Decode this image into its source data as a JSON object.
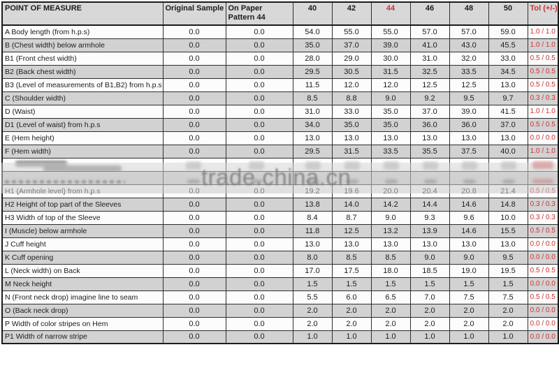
{
  "watermark": "trade.china.cn",
  "colors": {
    "accent_red": "#cc3333",
    "row_shade_gray": "#d2d2d2",
    "header_bg": "#d8d8d8",
    "watermark_gray": "#7a7a7a"
  },
  "table": {
    "columns": [
      "POINT OF MEASURE",
      "Original Sample",
      "On Paper Pattern 44",
      "40",
      "42",
      "44",
      "46",
      "48",
      "50",
      "Tol (+/-)"
    ],
    "red_columns": [
      5,
      9
    ],
    "rows": [
      {
        "label": "A Body length (from h.p.s)",
        "original_sample": "0.0",
        "on_paper_pattern": "0.0",
        "sizes": [
          "54.0",
          "55.0",
          "55.0",
          "57.0",
          "57.0",
          "59.0"
        ],
        "tol": "1.0 / 1.0"
      },
      {
        "label": "B (Chest width) below armhole",
        "original_sample": "0.0",
        "on_paper_pattern": "0.0",
        "sizes": [
          "35.0",
          "37.0",
          "39.0",
          "41.0",
          "43.0",
          "45.5"
        ],
        "tol": "1.0 / 1.0"
      },
      {
        "label": "B1 (Front chest width)",
        "original_sample": "0.0",
        "on_paper_pattern": "0.0",
        "sizes": [
          "28.0",
          "29.0",
          "30.0",
          "31.0",
          "32.0",
          "33.0"
        ],
        "tol": "0.5 / 0.5"
      },
      {
        "label": "B2 (Back chest width)",
        "original_sample": "0.0",
        "on_paper_pattern": "0.0",
        "sizes": [
          "29.5",
          "30.5",
          "31.5",
          "32.5",
          "33.5",
          "34.5"
        ],
        "tol": "0.5 / 0.5"
      },
      {
        "label": "B3 (Level of measurements of B1,B2) from h.p.s",
        "original_sample": "0.0",
        "on_paper_pattern": "0.0",
        "sizes": [
          "11.5",
          "12.0",
          "12.0",
          "12.5",
          "12.5",
          "13.0"
        ],
        "tol": "0.5 / 0.5"
      },
      {
        "label": "C (Shoulder width)",
        "original_sample": "0.0",
        "on_paper_pattern": "0.0",
        "sizes": [
          "8.5",
          "8.8",
          "9.0",
          "9.2",
          "9.5",
          "9.7"
        ],
        "tol": "0.3 / 0.3"
      },
      {
        "label": "D (Waist)",
        "original_sample": "0.0",
        "on_paper_pattern": "0.0",
        "sizes": [
          "31.0",
          "33.0",
          "35.0",
          "37.0",
          "39.0",
          "41.5"
        ],
        "tol": "1.0 / 1.0"
      },
      {
        "label": "D1 (Level of waist) from h.p.s",
        "original_sample": "0.0",
        "on_paper_pattern": "0.0",
        "sizes": [
          "34.0",
          "35.0",
          "35.0",
          "36.0",
          "36.0",
          "37.0"
        ],
        "tol": "0.5 / 0.5"
      },
      {
        "label": "E (Hem height)",
        "original_sample": "0.0",
        "on_paper_pattern": "0.0",
        "sizes": [
          "13.0",
          "13.0",
          "13.0",
          "13.0",
          "13.0",
          "13.0"
        ],
        "tol": "0.0 / 0.0"
      },
      {
        "label": "F (Hem width)",
        "original_sample": "0.0",
        "on_paper_pattern": "0.0",
        "sizes": [
          "29.5",
          "31.5",
          "33.5",
          "35.5",
          "37.5",
          "40.0"
        ],
        "tol": "1.0 / 1.0"
      },
      {
        "obscured": true
      },
      {
        "obscured": true
      },
      {
        "label": "H1 (Armhole level) from h.p.s",
        "original_sample": "0.0",
        "on_paper_pattern": "0.0",
        "sizes": [
          "19.2",
          "19.6",
          "20.0",
          "20.4",
          "20.8",
          "21.4"
        ],
        "tol": "0.5 / 0.5"
      },
      {
        "label": "H2 Height of top part of the Sleeves",
        "original_sample": "0.0",
        "on_paper_pattern": "0.0",
        "sizes": [
          "13.8",
          "14.0",
          "14.2",
          "14.4",
          "14.6",
          "14.8"
        ],
        "tol": "0.3 / 0.3"
      },
      {
        "label": "H3 Width of top of the Sleeve",
        "original_sample": "0.0",
        "on_paper_pattern": "0.0",
        "sizes": [
          "8.4",
          "8.7",
          "9.0",
          "9.3",
          "9.6",
          "10.0"
        ],
        "tol": "0.3 / 0.3"
      },
      {
        "label": "I (Muscle) below armhole",
        "original_sample": "0.0",
        "on_paper_pattern": "0.0",
        "sizes": [
          "11.8",
          "12.5",
          "13.2",
          "13.9",
          "14.6",
          "15.5"
        ],
        "tol": "0.5 / 0.5"
      },
      {
        "label": "J Cuff height",
        "original_sample": "0.0",
        "on_paper_pattern": "0.0",
        "sizes": [
          "13.0",
          "13.0",
          "13.0",
          "13.0",
          "13.0",
          "13.0"
        ],
        "tol": "0.0 / 0.0"
      },
      {
        "label": "K Cuff opening",
        "original_sample": "0.0",
        "on_paper_pattern": "0.0",
        "sizes": [
          "8.0",
          "8.5",
          "8.5",
          "9.0",
          "9.0",
          "9.5"
        ],
        "tol": "0.0 / 0.0"
      },
      {
        "label": "L (Neck width) on Back",
        "original_sample": "0.0",
        "on_paper_pattern": "0.0",
        "sizes": [
          "17.0",
          "17.5",
          "18.0",
          "18.5",
          "19.0",
          "19.5"
        ],
        "tol": "0.5 / 0.5"
      },
      {
        "label": "M Neck height",
        "original_sample": "0.0",
        "on_paper_pattern": "0.0",
        "sizes": [
          "1.5",
          "1.5",
          "1.5",
          "1.5",
          "1.5",
          "1.5"
        ],
        "tol": "0.0 / 0.0"
      },
      {
        "label": "N (Front neck drop) imagine line to seam",
        "original_sample": "0.0",
        "on_paper_pattern": "0.0",
        "sizes": [
          "5.5",
          "6.0",
          "6.5",
          "7.0",
          "7.5",
          "7.5"
        ],
        "tol": "0.5 / 0.5"
      },
      {
        "label": "O (Back neck drop)",
        "original_sample": "0.0",
        "on_paper_pattern": "0.0",
        "sizes": [
          "2.0",
          "2.0",
          "2.0",
          "2.0",
          "2.0",
          "2.0"
        ],
        "tol": "0.0 / 0.0"
      },
      {
        "label": "P Width of color stripes on Hem",
        "original_sample": "0.0",
        "on_paper_pattern": "0.0",
        "sizes": [
          "2.0",
          "2.0",
          "2.0",
          "2.0",
          "2.0",
          "2.0"
        ],
        "tol": "0.0 / 0.0"
      },
      {
        "label": "P1 Width of narrow stripe",
        "original_sample": "0.0",
        "on_paper_pattern": "0.0",
        "sizes": [
          "1.0",
          "1.0",
          "1.0",
          "1.0",
          "1.0",
          "1.0"
        ],
        "tol": "0.0 / 0.0"
      }
    ]
  }
}
